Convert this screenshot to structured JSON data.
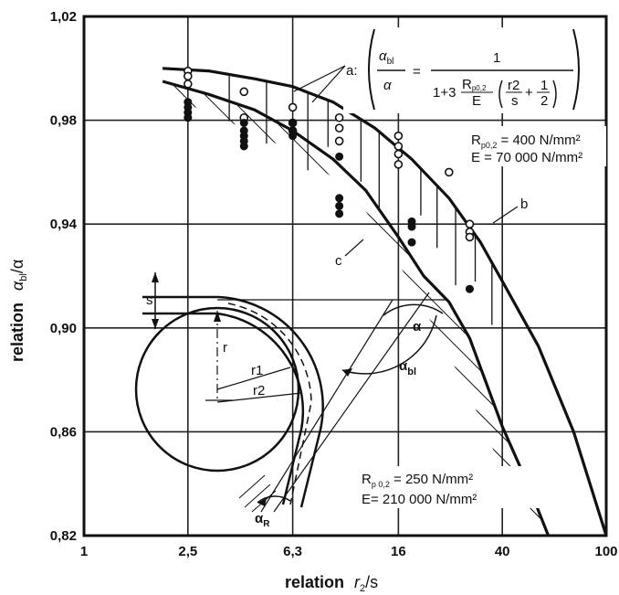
{
  "chart_data": {
    "type": "scatter",
    "xscale": "log",
    "xlim": [
      1,
      100
    ],
    "ylim": [
      0.82,
      1.02
    ],
    "xticks": [
      "1",
      "2,5",
      "6,3",
      "16",
      "40",
      "100"
    ],
    "xtick_values": [
      1,
      2.5,
      6.3,
      16,
      40,
      100
    ],
    "yticks": [
      "1,02",
      "0,98",
      "0,94",
      "0,90",
      "0,86",
      "0,82"
    ],
    "ytick_values": [
      1.02,
      0.98,
      0.94,
      0.9,
      0.86,
      0.82
    ],
    "xlabel_word": "relation",
    "xlabel_symbol": "r",
    "xlabel_sub": "2",
    "xlabel_tail": "/s",
    "ylabel_word": "relation",
    "ylabel_symbol": "α",
    "ylabel_sub": "bl",
    "ylabel_tail": "/α",
    "grid": true,
    "series": [
      {
        "key": "b",
        "label": "b",
        "x": [
          2.0,
          3.0,
          4.5,
          6.3,
          9.0,
          13.0,
          18.0,
          25.0,
          33.0,
          40.0,
          55.0,
          75.0,
          100.0
        ],
        "y": [
          1.0,
          0.999,
          0.996,
          0.993,
          0.987,
          0.977,
          0.965,
          0.95,
          0.933,
          0.918,
          0.893,
          0.86,
          0.82
        ]
      },
      {
        "key": "c",
        "label": "c",
        "x": [
          2.0,
          3.0,
          4.5,
          6.3,
          9.0,
          12.0,
          16.0,
          20.0,
          25.0,
          30.0,
          40.0,
          50.0,
          60.0
        ],
        "y": [
          0.995,
          0.99,
          0.984,
          0.976,
          0.965,
          0.953,
          0.935,
          0.92,
          0.91,
          0.896,
          0.862,
          0.84,
          0.82
        ]
      }
    ],
    "open_points": {
      "x": [
        2.5,
        2.5,
        2.5,
        4.1,
        4.1,
        6.3,
        6.3,
        6.3,
        9.5,
        9.5,
        9.5,
        16,
        16,
        16,
        16,
        25,
        30,
        30,
        30
      ],
      "y": [
        0.999,
        0.997,
        0.994,
        0.991,
        0.981,
        0.985,
        0.979,
        0.976,
        0.981,
        0.977,
        0.972,
        0.974,
        0.97,
        0.967,
        0.963,
        0.96,
        0.94,
        0.937,
        0.935
      ]
    },
    "filled_points": {
      "x": [
        2.5,
        2.5,
        2.5,
        2.5,
        4.1,
        4.1,
        4.1,
        4.1,
        4.1,
        6.3,
        6.3,
        6.3,
        9.5,
        9.5,
        9.5,
        9.5,
        18,
        18,
        18,
        30
      ],
      "y": [
        0.987,
        0.985,
        0.983,
        0.981,
        0.979,
        0.976,
        0.974,
        0.972,
        0.97,
        0.979,
        0.976,
        0.974,
        0.966,
        0.95,
        0.947,
        0.944,
        0.941,
        0.939,
        0.933,
        0.915
      ]
    },
    "formula": {
      "prefix": "a:",
      "num_symbol": "α",
      "num_sub": "bl",
      "den_symbol": "α",
      "equals": "=",
      "one": "1",
      "denominator_lead": "1+3",
      "r_label": "R",
      "r_sub": "p0,2",
      "e_label": "E",
      "frac_top": "r2",
      "frac_bot": "s",
      "plus": "+",
      "half_top": "1",
      "half_bot": "2"
    },
    "annotations": [
      {
        "key": "upper_rp",
        "r": "R",
        "rsub": "p0,2",
        "text": " =  400 N/mm²",
        "etext": "E = 70 000  N/mm²"
      },
      {
        "key": "lower_rp",
        "r": "R",
        "rsub": "p 0,2",
        "text": " =  250 N/mm²",
        "etext": "E= 210 000  N/mm²"
      }
    ],
    "inset": {
      "s_label": "s",
      "r_label": "r",
      "r1": "r1",
      "r2": "r2",
      "alpha": "α",
      "alpha_bl": "α",
      "alpha_bl_sub": "bl",
      "alpha_r": "α",
      "alpha_r_sub": "R"
    }
  }
}
